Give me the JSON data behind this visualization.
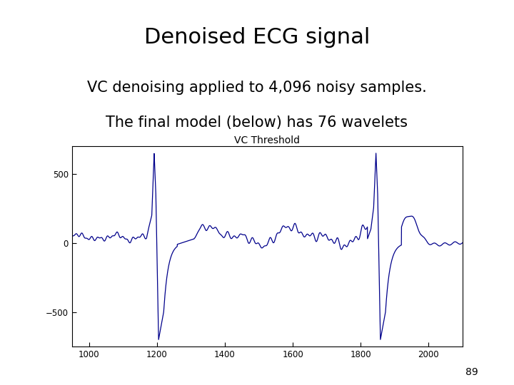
{
  "title": "Denoised ECG signal",
  "subtitle_line1": "VC denoising applied to 4,096 noisy samples.",
  "subtitle_line2": "The final model (below) has 76 wavelets",
  "plot_title": "VC Threshold",
  "xlim": [
    950,
    2100
  ],
  "ylim": [
    -750,
    700
  ],
  "yticks": [
    -500,
    0,
    500
  ],
  "xticks": [
    1000,
    1200,
    1400,
    1600,
    1800,
    2000
  ],
  "line_color": "#00008B",
  "background_color": "#ffffff",
  "page_number": "89",
  "title_fontsize": 22,
  "subtitle_fontsize": 15,
  "plot_title_fontsize": 10
}
